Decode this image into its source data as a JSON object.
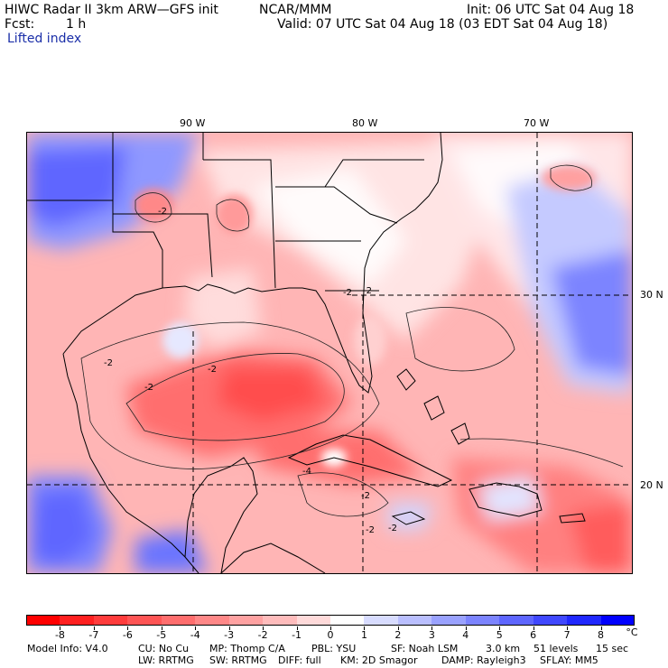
{
  "header": {
    "title": "HIWC Radar II 3km ARW—GFS init",
    "org": "NCAR/MMM",
    "init": "Init: 06 UTC Sat 04 Aug 18",
    "fcst_label": "Fcst:",
    "fcst_value": "1 h",
    "valid": "Valid: 07 UTC Sat 04 Aug 18 (03 EDT Sat 04 Aug 18)",
    "field": "Lifted index"
  },
  "map": {
    "lon_labels": [
      "90 W",
      "80 W",
      "70 W"
    ],
    "lat_labels": [
      "30 N",
      "20 N"
    ],
    "contour_labels": [
      "-2",
      "-2",
      "-2",
      "-2",
      "-4",
      "-2",
      "-2",
      "-2",
      "-2",
      "-2"
    ]
  },
  "colorbar": {
    "labels": [
      "-8",
      "-7",
      "-6",
      "-5",
      "-4",
      "-3",
      "-2",
      "-1",
      "0",
      "1",
      "2",
      "3",
      "4",
      "5",
      "6",
      "7",
      "8"
    ],
    "unit": "°C",
    "colors": [
      "#ff0000",
      "#ff2020",
      "#ff3c3c",
      "#ff5555",
      "#ff6e6e",
      "#ff8888",
      "#ffa2a2",
      "#ffbcbc",
      "#ffdada",
      "#ffffff",
      "#d8dcff",
      "#babfff",
      "#9aa2ff",
      "#7c84ff",
      "#5e66ff",
      "#4048ff",
      "#2028ff",
      "#0000ff"
    ]
  },
  "model_info": {
    "row1": [
      "Model Info: V4.0",
      "CU: No Cu",
      "MP: Thomp C/A",
      "PBL: YSU",
      "SF: Noah LSM",
      "3.0 km",
      "51 levels",
      "15 sec"
    ],
    "row2": [
      "LW: RRTMG",
      "SW: RRTMG",
      "DIFF: full",
      "KM: 2D Smagor",
      "DAMP: Rayleigh3",
      "SFLAY: MM5"
    ]
  }
}
